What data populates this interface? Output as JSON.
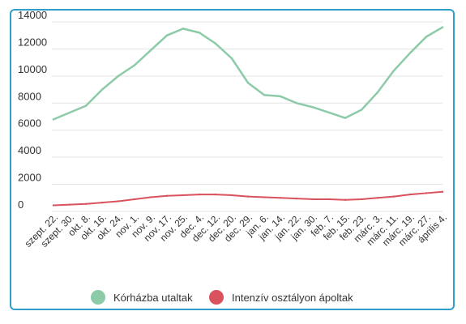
{
  "chart_data": {
    "type": "line",
    "categories": [
      "szept. 22.",
      "szept. 30.",
      "okt. 8.",
      "okt. 16.",
      "okt. 24.",
      "nov. 1.",
      "nov. 9.",
      "nov. 17.",
      "nov. 25.",
      "dec. 4.",
      "dec. 12.",
      "dec. 20.",
      "dec. 29.",
      "jan. 6.",
      "jan. 14.",
      "jan. 22.",
      "jan. 30.",
      "feb. 7.",
      "feb. 15.",
      "feb. 23.",
      "márc. 3.",
      "márc. 11.",
      "márc. 19.",
      "márc. 27.",
      "április 4."
    ],
    "yticks": [
      0,
      2000,
      4000,
      6000,
      8000,
      10000,
      12000,
      14000
    ],
    "ylim": [
      0,
      14000
    ],
    "grid": true,
    "legend": "bottom",
    "title": "",
    "xlabel": "",
    "ylabel": "",
    "series": [
      {
        "name": "Kórházba utaltak",
        "color": "#8ccaa8",
        "values": [
          6800,
          7300,
          7800,
          9000,
          10000,
          10800,
          11900,
          13000,
          13500,
          13200,
          12400,
          11300,
          9500,
          8600,
          8500,
          8000,
          7700,
          7300,
          6900,
          7500,
          8800,
          10400,
          11700,
          12900,
          13600
        ]
      },
      {
        "name": "Intenzív osztályon ápoltak",
        "color": "#d9525e",
        "values": [
          450,
          500,
          550,
          650,
          750,
          900,
          1050,
          1150,
          1200,
          1250,
          1250,
          1200,
          1100,
          1050,
          1000,
          950,
          900,
          900,
          850,
          900,
          1000,
          1100,
          1250,
          1350,
          1450
        ]
      }
    ]
  }
}
